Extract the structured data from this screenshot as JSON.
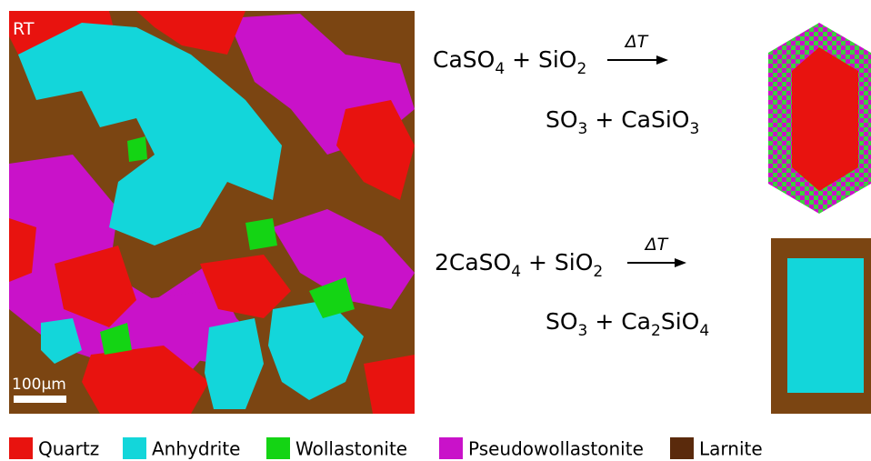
{
  "map": {
    "label": "RT",
    "scale_bar": "100µm"
  },
  "reactions": [
    {
      "left": [
        {
          "text": "CaSO",
          "sub": "4"
        },
        {
          "text": " + SiO",
          "sub": "2"
        }
      ],
      "condition": "ΔT",
      "right": [
        {
          "text": "SO",
          "sub": "3"
        },
        {
          "text": " + CaSiO",
          "sub": "3"
        }
      ]
    },
    {
      "left": [
        {
          "text": "2CaSO",
          "sub": "4"
        },
        {
          "text": " + SiO",
          "sub": "2"
        }
      ],
      "condition": "ΔT",
      "right": [
        {
          "text": "SO",
          "sub": "3"
        },
        {
          "text": " + Ca",
          "sub": "2"
        },
        {
          "text": "SiO",
          "sub": "4"
        }
      ]
    }
  ],
  "legend": [
    {
      "label": "Quartz",
      "color": "#e8130f"
    },
    {
      "label": "Anhydrite",
      "color": "#13d6da"
    },
    {
      "label": "Wollastonite",
      "color": "#14d414"
    },
    {
      "label": "Pseudowollastonite",
      "color": "#c912c9"
    },
    {
      "label": "Larnite",
      "color": "#5a2a0c"
    }
  ]
}
